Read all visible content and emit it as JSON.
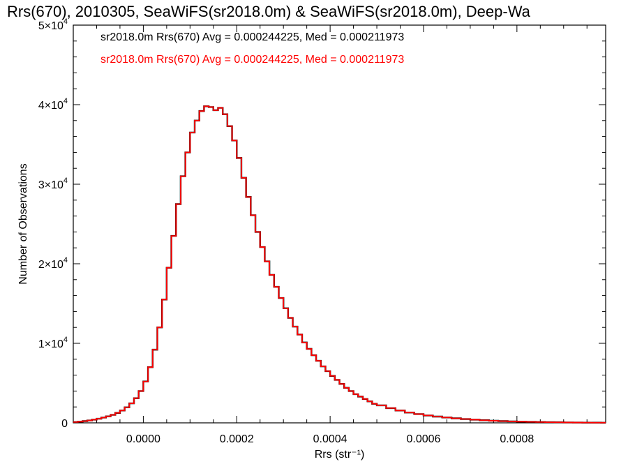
{
  "chart_data": {
    "type": "histogram",
    "title": "Rrs(670), 2010305, SeaWiFS(sr2018.0m) & SeaWiFS(sr2018.0m), Deep-Wa",
    "xlabel": "Rrs (str⁻¹)",
    "ylabel": "Number of Observations",
    "xlim": [
      -0.00015,
      0.00099
    ],
    "ylim": [
      0,
      50000
    ],
    "xticks": [
      0.0,
      0.0002,
      0.0004,
      0.0006,
      0.0008
    ],
    "xtick_labels": [
      "0.0000",
      "0.0002",
      "0.0004",
      "0.0006",
      "0.0008"
    ],
    "yticks": [
      0,
      10000,
      20000,
      30000,
      40000,
      50000
    ],
    "ytick_mantissa": [
      "0",
      "1×10",
      "2×10",
      "3×10",
      "4×10",
      "5×10"
    ],
    "ytick_exponent": [
      "",
      "4",
      "4",
      "4",
      "4",
      "4"
    ],
    "legend": [
      {
        "text": "sr2018.0m Rrs(670) Avg = 0.000244225, Med = 0.000211973",
        "color": "#000000"
      },
      {
        "text": "sr2018.0m Rrs(670) Avg = 0.000244225, Med = 0.000211973",
        "color": "#ff0000"
      }
    ],
    "series": [
      {
        "color": "#000000"
      },
      {
        "color": "#ff0000"
      }
    ],
    "x": [
      -0.00015,
      -0.00014,
      -0.00013,
      -0.00012,
      -0.00011,
      -0.0001,
      -9e-05,
      -8e-05,
      -7e-05,
      -6e-05,
      -5e-05,
      -4e-05,
      -3e-05,
      -2e-05,
      -1e-05,
      0.0,
      1e-05,
      2e-05,
      3e-05,
      4e-05,
      5e-05,
      6e-05,
      7e-05,
      8e-05,
      9e-05,
      0.0001,
      0.00011,
      0.00012,
      0.00013,
      0.00014,
      0.00015,
      0.00016,
      0.00017,
      0.00018,
      0.00019,
      0.0002,
      0.00021,
      0.00022,
      0.00023,
      0.00024,
      0.00025,
      0.00026,
      0.00027,
      0.00028,
      0.00029,
      0.0003,
      0.00031,
      0.00032,
      0.00033,
      0.00034,
      0.00035,
      0.00036,
      0.00037,
      0.00038,
      0.00039,
      0.0004,
      0.00041,
      0.00042,
      0.00043,
      0.00044,
      0.00045,
      0.00046,
      0.00047,
      0.00048,
      0.00049,
      0.0005,
      0.00052,
      0.00054,
      0.00056,
      0.00058,
      0.0006,
      0.00062,
      0.00064,
      0.00066,
      0.00068,
      0.0007,
      0.00072,
      0.00074,
      0.00076,
      0.00078,
      0.0008,
      0.00082,
      0.00084,
      0.00086,
      0.00088,
      0.0009,
      0.00092,
      0.00094,
      0.00096,
      0.00098
    ],
    "counts": [
      100,
      150,
      220,
      300,
      400,
      520,
      660,
      820,
      1000,
      1250,
      1550,
      1950,
      2450,
      3100,
      4000,
      5200,
      7000,
      9200,
      12000,
      15500,
      19500,
      23500,
      27500,
      31000,
      34000,
      36500,
      38000,
      39200,
      39800,
      39700,
      39300,
      39600,
      38800,
      37300,
      35500,
      33300,
      30800,
      28400,
      26100,
      24000,
      22100,
      20300,
      18600,
      17100,
      15700,
      14400,
      13200,
      12100,
      11100,
      10100,
      9300,
      8500,
      7800,
      7100,
      6500,
      5900,
      5400,
      4900,
      4400,
      4000,
      3600,
      3300,
      3000,
      2700,
      2400,
      2200,
      1850,
      1550,
      1300,
      1100,
      930,
      790,
      670,
      570,
      480,
      400,
      330,
      270,
      220,
      180,
      150,
      120,
      100,
      80,
      65,
      50,
      40,
      30,
      25,
      20
    ]
  }
}
